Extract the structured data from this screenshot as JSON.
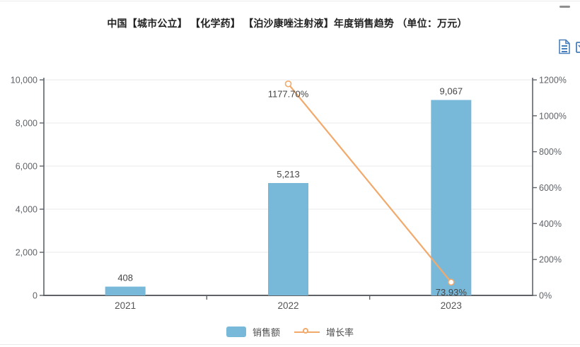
{
  "header": {
    "title": "中国【城市公立】 【化学药】 【泊沙康唑注射液】年度销售趋势 （单位：万元）"
  },
  "toolbar": {
    "icons": [
      "minimize-dash-icon",
      "report-document-icon",
      "clipped-partial-icon"
    ]
  },
  "colors": {
    "bar": "#78b9da",
    "line": "#f2a96c",
    "axis": "#5f6368",
    "grid": "#e9e9e9",
    "tick_text": "#5f6368",
    "value_text": "#454545",
    "icon_blue": "#4a80bb"
  },
  "chart_data": {
    "type": "bar",
    "title": "中国【城市公立】 【化学药】 【泊沙康唑注射液】年度销售趋势 （单位：万元）",
    "categories": [
      "2021",
      "2022",
      "2023"
    ],
    "series": [
      {
        "name": "销售额",
        "type": "bar",
        "axis": "left",
        "values": [
          408,
          5213,
          9067
        ],
        "labels": [
          "408",
          "5,213",
          "9,067"
        ],
        "color": "#78b9da"
      },
      {
        "name": "增长率",
        "type": "line",
        "axis": "right",
        "values": [
          null,
          1177.7,
          73.93
        ],
        "labels": [
          null,
          "1177.70%",
          "73.93%"
        ],
        "color": "#f2a96c"
      }
    ],
    "left_axis": {
      "min": 0,
      "max": 10000,
      "tick_values": [
        0,
        2000,
        4000,
        6000,
        8000,
        10000
      ],
      "tick_labels": [
        "0",
        "2,000",
        "4,000",
        "6,000",
        "8,000",
        "10,000"
      ]
    },
    "right_axis": {
      "min": 0,
      "max": 1200,
      "tick_values": [
        0,
        200,
        400,
        600,
        800,
        1000,
        1200
      ],
      "tick_labels": [
        "0%",
        "200%",
        "400%",
        "600%",
        "800%",
        "1000%",
        "1200%"
      ]
    },
    "grid": true,
    "legend_position": "bottom"
  }
}
